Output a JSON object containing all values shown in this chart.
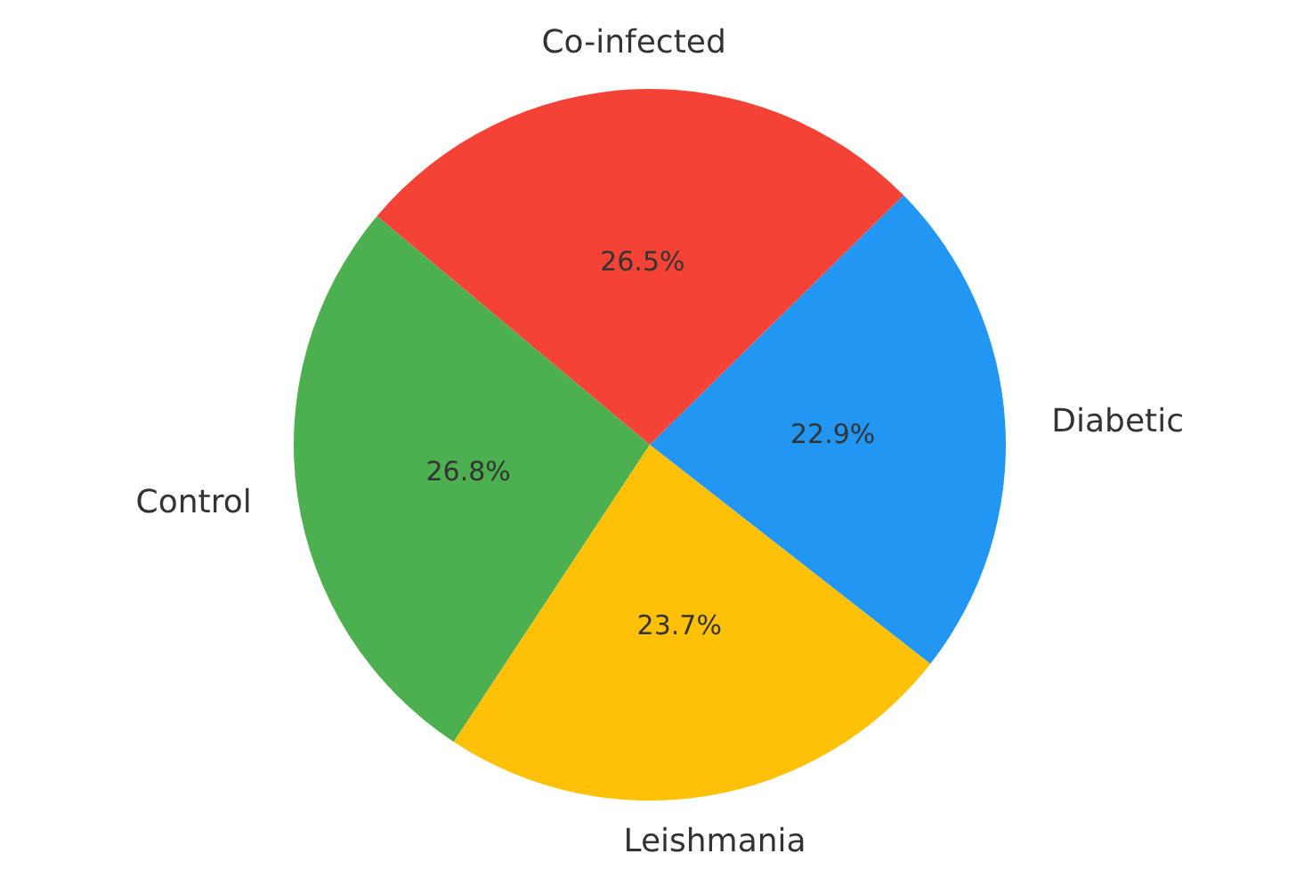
{
  "chart_data": {
    "type": "pie",
    "categories": [
      "Diabetic",
      "Co-infected",
      "Control",
      "Leishmania"
    ],
    "values": [
      22.9,
      26.5,
      26.8,
      23.7
    ],
    "value_labels": [
      "22.9%",
      "26.5%",
      "26.8%",
      "23.7%"
    ],
    "colors": [
      "#2196f3",
      "#f44336",
      "#4caf50",
      "#ffc107"
    ],
    "legend": false
  }
}
